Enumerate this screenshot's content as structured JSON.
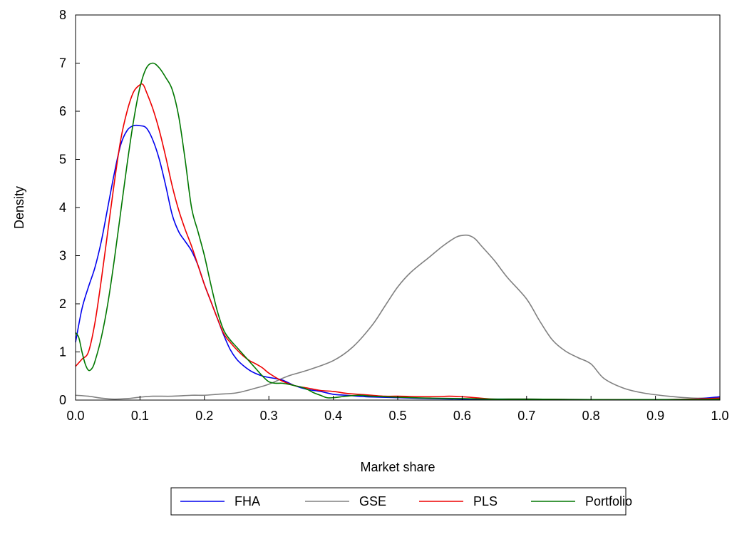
{
  "chart_data": {
    "type": "line",
    "title": "",
    "xlabel": "Market share",
    "ylabel": "Density",
    "xlim": [
      0.0,
      1.0
    ],
    "ylim": [
      0,
      8
    ],
    "xticks": [
      "0.0",
      "0.1",
      "0.2",
      "0.3",
      "0.4",
      "0.5",
      "0.6",
      "0.7",
      "0.8",
      "0.9",
      "1.0"
    ],
    "yticks": [
      "0",
      "1",
      "2",
      "3",
      "4",
      "5",
      "6",
      "7",
      "8"
    ],
    "grid": false,
    "legend_position": "bottom",
    "series": [
      {
        "name": "FHA",
        "color": "#0000ee",
        "x": [
          0.0,
          0.01,
          0.02,
          0.03,
          0.04,
          0.05,
          0.06,
          0.07,
          0.08,
          0.09,
          0.1,
          0.11,
          0.12,
          0.13,
          0.14,
          0.15,
          0.16,
          0.17,
          0.18,
          0.19,
          0.2,
          0.21,
          0.22,
          0.23,
          0.24,
          0.25,
          0.26,
          0.27,
          0.28,
          0.29,
          0.3,
          0.32,
          0.34,
          0.36,
          0.38,
          0.4,
          0.42,
          0.45,
          0.5,
          0.55,
          0.6,
          0.65,
          0.7,
          0.8,
          0.9,
          0.96,
          1.0
        ],
        "y": [
          1.2,
          1.9,
          2.35,
          2.75,
          3.3,
          4.0,
          4.7,
          5.3,
          5.6,
          5.7,
          5.7,
          5.65,
          5.4,
          5.0,
          4.45,
          3.85,
          3.5,
          3.3,
          3.1,
          2.8,
          2.4,
          2.05,
          1.7,
          1.35,
          1.05,
          0.85,
          0.72,
          0.62,
          0.55,
          0.5,
          0.47,
          0.42,
          0.3,
          0.22,
          0.18,
          0.12,
          0.1,
          0.07,
          0.05,
          0.03,
          0.02,
          0.02,
          0.02,
          0.01,
          0.01,
          0.02,
          0.07
        ]
      },
      {
        "name": "GSE",
        "color": "#808080",
        "x": [
          0.0,
          0.02,
          0.04,
          0.06,
          0.08,
          0.1,
          0.12,
          0.15,
          0.18,
          0.2,
          0.22,
          0.25,
          0.28,
          0.3,
          0.33,
          0.36,
          0.4,
          0.43,
          0.46,
          0.48,
          0.5,
          0.52,
          0.55,
          0.57,
          0.59,
          0.6,
          0.61,
          0.62,
          0.63,
          0.65,
          0.67,
          0.7,
          0.72,
          0.74,
          0.76,
          0.78,
          0.8,
          0.82,
          0.85,
          0.88,
          0.92,
          0.96,
          1.0
        ],
        "y": [
          0.1,
          0.08,
          0.04,
          0.02,
          0.03,
          0.06,
          0.08,
          0.08,
          0.1,
          0.1,
          0.12,
          0.15,
          0.25,
          0.33,
          0.5,
          0.62,
          0.82,
          1.1,
          1.55,
          1.95,
          2.35,
          2.65,
          2.98,
          3.2,
          3.38,
          3.42,
          3.42,
          3.35,
          3.2,
          2.9,
          2.55,
          2.1,
          1.65,
          1.25,
          1.02,
          0.88,
          0.75,
          0.45,
          0.25,
          0.15,
          0.08,
          0.04,
          0.05
        ]
      },
      {
        "name": "PLS",
        "color": "#ee0000",
        "x": [
          0.0,
          0.01,
          0.02,
          0.03,
          0.04,
          0.05,
          0.06,
          0.07,
          0.08,
          0.09,
          0.1,
          0.105,
          0.11,
          0.12,
          0.13,
          0.14,
          0.15,
          0.16,
          0.17,
          0.18,
          0.19,
          0.2,
          0.21,
          0.22,
          0.23,
          0.24,
          0.25,
          0.26,
          0.27,
          0.28,
          0.29,
          0.3,
          0.32,
          0.34,
          0.36,
          0.38,
          0.4,
          0.42,
          0.44,
          0.46,
          0.48,
          0.5,
          0.55,
          0.58,
          0.6,
          0.62,
          0.65,
          0.7,
          0.8,
          0.9,
          0.96,
          1.0
        ],
        "y": [
          0.7,
          0.85,
          1.0,
          1.6,
          2.5,
          3.5,
          4.5,
          5.4,
          6.0,
          6.4,
          6.55,
          6.55,
          6.4,
          6.05,
          5.6,
          5.05,
          4.45,
          3.95,
          3.55,
          3.2,
          2.8,
          2.4,
          2.05,
          1.7,
          1.38,
          1.2,
          1.05,
          0.92,
          0.82,
          0.75,
          0.67,
          0.56,
          0.4,
          0.3,
          0.25,
          0.2,
          0.18,
          0.14,
          0.12,
          0.1,
          0.08,
          0.08,
          0.07,
          0.08,
          0.07,
          0.05,
          0.02,
          0.02,
          0.01,
          0.01,
          0.02,
          0.04
        ]
      },
      {
        "name": "Portfolio",
        "color": "#007700",
        "x": [
          0.0,
          0.005,
          0.01,
          0.015,
          0.02,
          0.025,
          0.03,
          0.04,
          0.05,
          0.06,
          0.07,
          0.08,
          0.09,
          0.1,
          0.11,
          0.12,
          0.13,
          0.14,
          0.15,
          0.16,
          0.17,
          0.18,
          0.19,
          0.2,
          0.21,
          0.22,
          0.23,
          0.24,
          0.25,
          0.26,
          0.27,
          0.28,
          0.29,
          0.3,
          0.31,
          0.32,
          0.33,
          0.34,
          0.35,
          0.36,
          0.37,
          0.38,
          0.39,
          0.4,
          0.42,
          0.44,
          0.46,
          0.5,
          0.55,
          0.6,
          0.65,
          0.7,
          0.8,
          0.9,
          0.96,
          1.0
        ],
        "y": [
          1.4,
          1.3,
          1.0,
          0.75,
          0.62,
          0.65,
          0.8,
          1.3,
          2.0,
          2.9,
          3.9,
          4.9,
          5.8,
          6.5,
          6.9,
          7.0,
          6.9,
          6.7,
          6.45,
          5.9,
          5.0,
          4.0,
          3.5,
          3.0,
          2.4,
          1.85,
          1.45,
          1.25,
          1.1,
          0.95,
          0.8,
          0.65,
          0.5,
          0.38,
          0.35,
          0.35,
          0.33,
          0.3,
          0.27,
          0.22,
          0.15,
          0.1,
          0.05,
          0.05,
          0.08,
          0.1,
          0.08,
          0.06,
          0.04,
          0.03,
          0.02,
          0.02,
          0.01,
          0.01,
          0.01,
          0.02
        ]
      }
    ]
  }
}
